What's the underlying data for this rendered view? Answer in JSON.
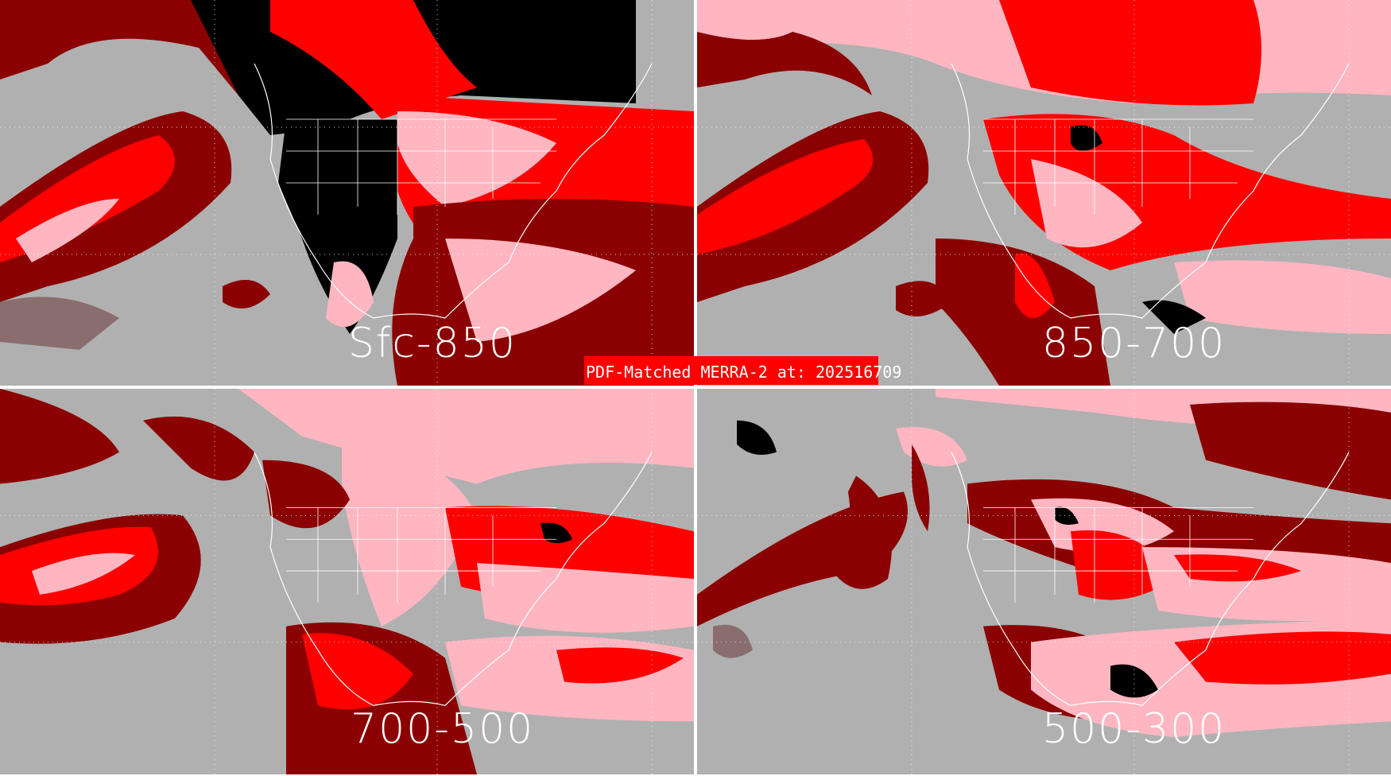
{
  "title": "PDF-Matched MERRA-2 at: 202516709",
  "panels": [
    {
      "label": "Sfc-850"
    },
    {
      "label": "850-700"
    },
    {
      "label": "700-500"
    },
    {
      "label": "500-300"
    }
  ],
  "colors": {
    "background": "#b0b0b0",
    "dark_red": "#8b0000",
    "red": "#ff0000",
    "pink": "#ffb6c1",
    "black": "#000000",
    "gray_brown": "#8a6e6e",
    "lines": "#ffffff"
  }
}
